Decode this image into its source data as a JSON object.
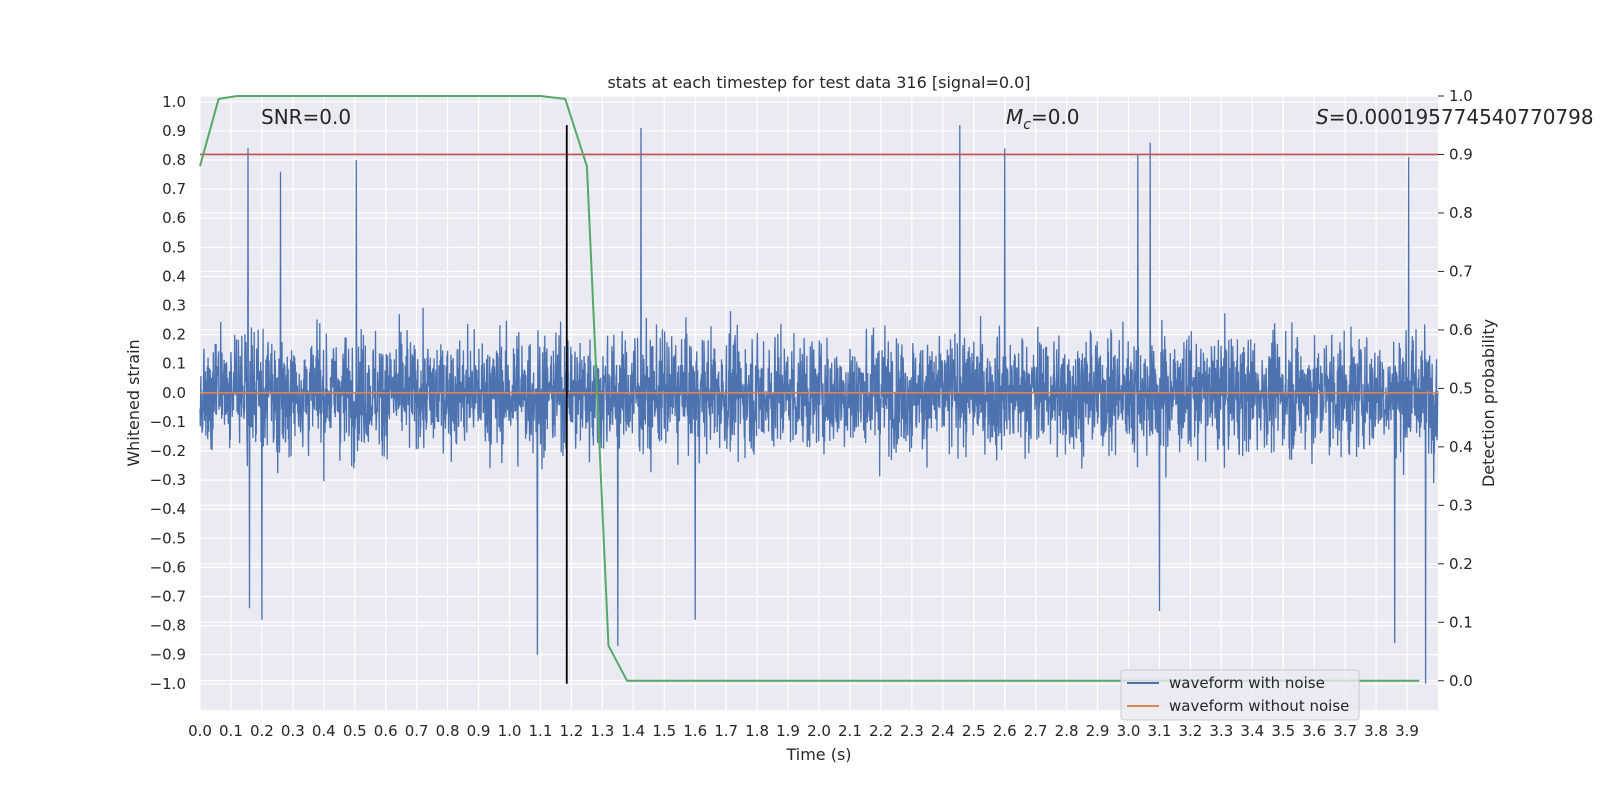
{
  "chart_data": {
    "type": "line",
    "title": "stats at each timestep for test data 316 [signal=0.0]",
    "xlabel": "Time (s)",
    "ylabel": "Whitened strain",
    "y2label": "Detection probability",
    "xlim": [
      0.0,
      4.0
    ],
    "ylim": [
      -1.09,
      1.02
    ],
    "y2lim": [
      -0.05,
      1.0
    ],
    "x_ticks": [
      "0.0",
      "0.1",
      "0.2",
      "0.3",
      "0.4",
      "0.5",
      "0.6",
      "0.7",
      "0.8",
      "0.9",
      "1.0",
      "1.1",
      "1.2",
      "1.3",
      "1.4",
      "1.5",
      "1.6",
      "1.7",
      "1.8",
      "1.9",
      "2.0",
      "2.1",
      "2.2",
      "2.3",
      "2.4",
      "2.5",
      "2.6",
      "2.7",
      "2.8",
      "2.9",
      "3.0",
      "3.1",
      "3.2",
      "3.3",
      "3.4",
      "3.5",
      "3.6",
      "3.7",
      "3.8",
      "3.9"
    ],
    "y_ticks": [
      "1.0",
      "0.9",
      "0.8",
      "0.7",
      "0.6",
      "0.5",
      "0.4",
      "0.3",
      "0.2",
      "0.1",
      "0.0",
      "−0.1",
      "−0.2",
      "−0.3",
      "−0.4",
      "−0.5",
      "−0.6",
      "−0.7",
      "−0.8",
      "−0.9",
      "−1.0"
    ],
    "y2_ticks": [
      "1.0",
      "0.9",
      "0.8",
      "0.7",
      "0.6",
      "0.5",
      "0.4",
      "0.3",
      "0.2",
      "0.1",
      "0.0"
    ],
    "grid": true,
    "annotations": {
      "snr": "SNR=0.0",
      "mc_symbol": "M",
      "mc_sub": "c",
      "mc_value": "=0.0",
      "s_symbol": "S",
      "s_value": "=0.00019577454077079​8"
    },
    "noise_extremes": {
      "positive_spikes": [
        [
          0.155,
          0.84
        ],
        [
          0.26,
          0.76
        ],
        [
          0.505,
          0.8
        ],
        [
          1.425,
          0.91
        ],
        [
          2.455,
          0.92
        ],
        [
          2.6,
          0.84
        ],
        [
          3.03,
          0.82
        ],
        [
          3.07,
          0.86
        ],
        [
          3.905,
          0.81
        ]
      ],
      "negative_spikes": [
        [
          0.16,
          -0.74
        ],
        [
          0.2,
          -0.78
        ],
        [
          1.09,
          -0.9
        ],
        [
          1.35,
          -0.87
        ],
        [
          1.6,
          -0.78
        ],
        [
          3.1,
          -0.75
        ],
        [
          3.86,
          -0.86
        ],
        [
          3.96,
          -1.0
        ]
      ]
    },
    "series": [
      {
        "name": "waveform with noise",
        "axis": "left",
        "color": "#4c72b0",
        "kind": "noise",
        "amplitude_typical": 0.35
      },
      {
        "name": "waveform without noise",
        "axis": "left",
        "color": "#dd8452",
        "x": [
          0.0,
          4.0
        ],
        "y": [
          0.0,
          0.0
        ]
      },
      {
        "name": "",
        "axis": "right",
        "color": "#55a868",
        "x": [
          0.0,
          0.06,
          0.12,
          0.18,
          0.6,
          1.1,
          1.18,
          1.25,
          1.32,
          1.38,
          1.5,
          3.94
        ],
        "y": [
          0.88,
          0.995,
          1.0,
          1.0,
          1.0,
          1.0,
          0.995,
          0.88,
          0.06,
          0.0,
          0.0,
          0.0
        ]
      },
      {
        "name": "",
        "axis": "right",
        "color": "#c44e52",
        "kind": "hline",
        "x": [
          0.0,
          4.0
        ],
        "y": [
          0.9,
          0.9
        ]
      }
    ],
    "vline": {
      "x": 1.185,
      "y_range": [
        -1.0,
        0.92
      ],
      "color": "#000000"
    },
    "legend": {
      "position": "bottom-right",
      "entries": [
        "waveform with noise",
        "waveform without noise"
      ]
    }
  }
}
